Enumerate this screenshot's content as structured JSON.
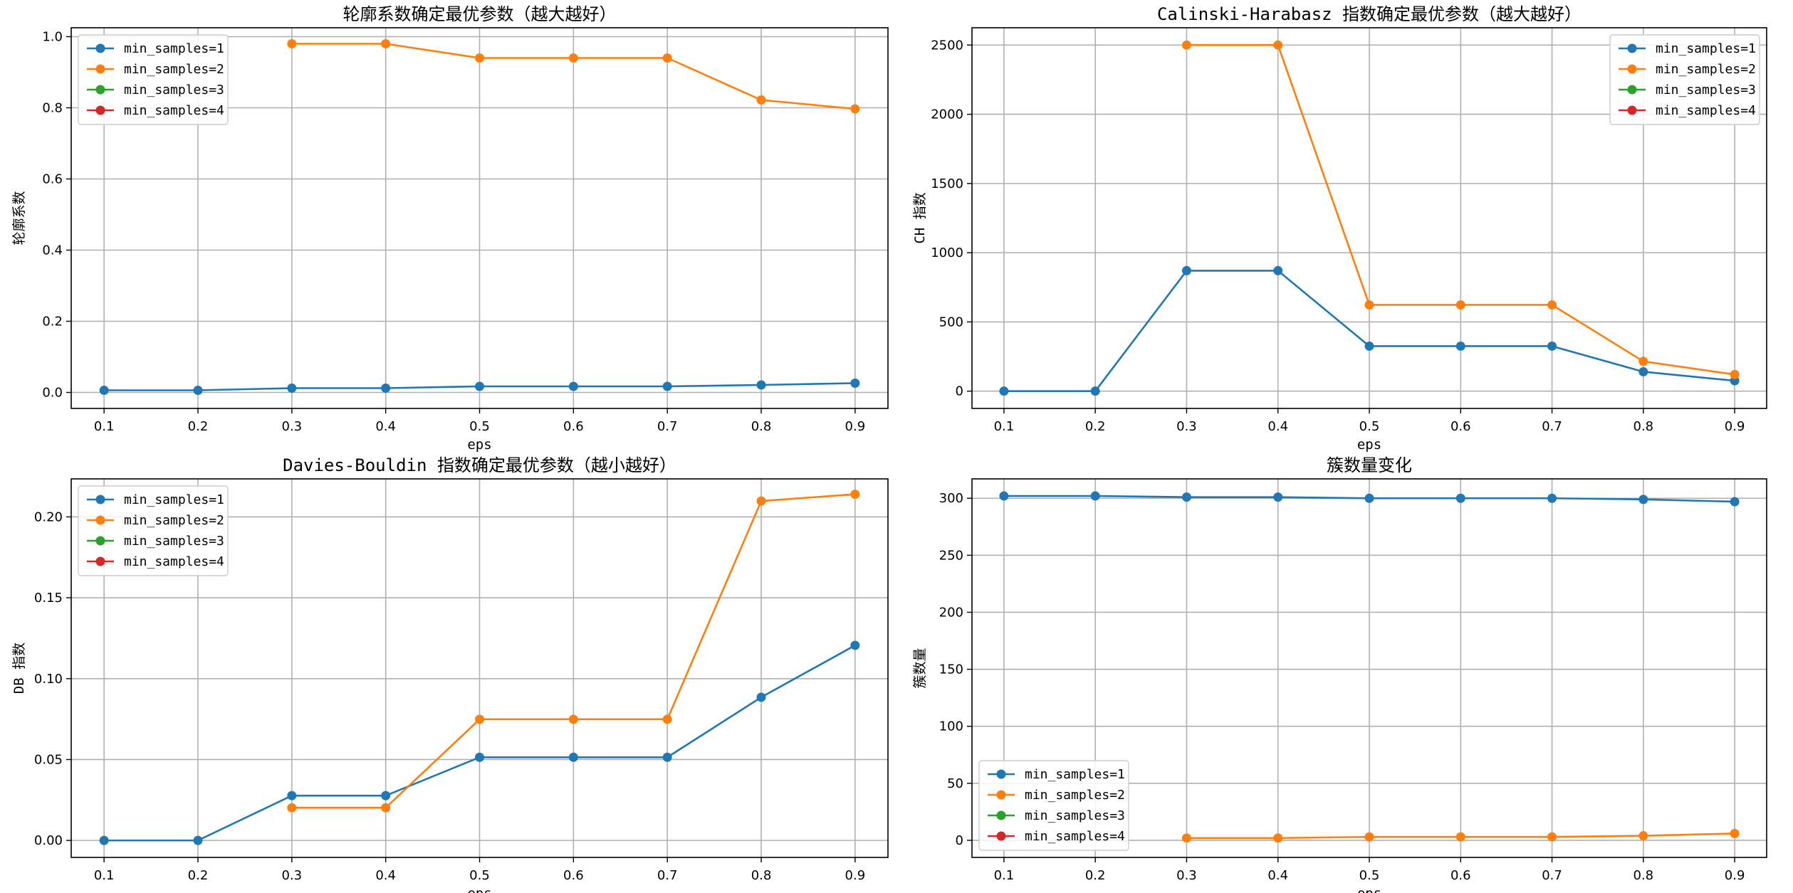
{
  "chart_data": [
    {
      "type": "line",
      "title": "轮廓系数确定最优参数（越大越好）",
      "xlabel": "eps",
      "ylabel": "轮廓系数",
      "x": [
        0.1,
        0.2,
        0.3,
        0.4,
        0.5,
        0.6,
        0.7,
        0.8,
        0.9
      ],
      "xlim": [
        0.065,
        0.935
      ],
      "ylim": [
        -0.045,
        1.025
      ],
      "yticks": [
        0.0,
        0.2,
        0.4,
        0.6,
        0.8,
        1.0
      ],
      "ytick_labels": [
        "0.0",
        "0.2",
        "0.4",
        "0.6",
        "0.8",
        "1.0"
      ],
      "grid": true,
      "legend_position": "upper-left",
      "series": [
        {
          "name": "min_samples=1",
          "color": "#1f77b4",
          "values": [
            0.006,
            0.006,
            0.012,
            0.012,
            0.017,
            0.017,
            0.017,
            0.021,
            0.026
          ]
        },
        {
          "name": "min_samples=2",
          "color": "#ff7f0e",
          "values": [
            null,
            null,
            0.98,
            0.98,
            0.94,
            0.94,
            0.94,
            0.822,
            0.797
          ]
        },
        {
          "name": "min_samples=3",
          "color": "#2ca02c",
          "values": [
            null,
            null,
            null,
            null,
            null,
            null,
            null,
            null,
            null
          ]
        },
        {
          "name": "min_samples=4",
          "color": "#d62728",
          "values": [
            null,
            null,
            null,
            null,
            null,
            null,
            null,
            null,
            null
          ]
        }
      ]
    },
    {
      "type": "line",
      "title": "Calinski-Harabasz 指数确定最优参数（越大越好）",
      "xlabel": "eps",
      "ylabel": "CH 指数",
      "x": [
        0.1,
        0.2,
        0.3,
        0.4,
        0.5,
        0.6,
        0.7,
        0.8,
        0.9
      ],
      "xlim": [
        0.065,
        0.935
      ],
      "ylim": [
        -125,
        2625
      ],
      "yticks": [
        0,
        500,
        1000,
        1500,
        2000,
        2500
      ],
      "ytick_labels": [
        "0",
        "500",
        "1000",
        "1500",
        "2000",
        "2500"
      ],
      "grid": true,
      "legend_position": "upper-right",
      "series": [
        {
          "name": "min_samples=1",
          "color": "#1f77b4",
          "values": [
            0,
            0,
            870,
            870,
            325,
            325,
            325,
            140,
            75
          ]
        },
        {
          "name": "min_samples=2",
          "color": "#ff7f0e",
          "values": [
            null,
            null,
            2500,
            2500,
            623,
            623,
            623,
            215,
            120
          ]
        },
        {
          "name": "min_samples=3",
          "color": "#2ca02c",
          "values": [
            null,
            null,
            null,
            null,
            null,
            null,
            null,
            null,
            null
          ]
        },
        {
          "name": "min_samples=4",
          "color": "#d62728",
          "values": [
            null,
            null,
            null,
            null,
            null,
            null,
            null,
            null,
            null
          ]
        }
      ]
    },
    {
      "type": "line",
      "title": "Davies-Bouldin 指数确定最优参数（越小越好）",
      "xlabel": "eps",
      "ylabel": "DB 指数",
      "x": [
        0.1,
        0.2,
        0.3,
        0.4,
        0.5,
        0.6,
        0.7,
        0.8,
        0.9
      ],
      "xlim": [
        0.065,
        0.935
      ],
      "ylim": [
        -0.0105,
        0.2235
      ],
      "yticks": [
        0.0,
        0.05,
        0.1,
        0.15,
        0.2
      ],
      "ytick_labels": [
        "0.00",
        "0.05",
        "0.10",
        "0.15",
        "0.20"
      ],
      "grid": true,
      "legend_position": "upper-left",
      "series": [
        {
          "name": "min_samples=1",
          "color": "#1f77b4",
          "values": [
            0.0,
            0.0,
            0.0277,
            0.0277,
            0.0514,
            0.0514,
            0.0514,
            0.0885,
            0.1206
          ]
        },
        {
          "name": "min_samples=2",
          "color": "#ff7f0e",
          "values": [
            null,
            null,
            0.0202,
            0.0202,
            0.0749,
            0.0749,
            0.0749,
            0.2098,
            0.214
          ]
        },
        {
          "name": "min_samples=3",
          "color": "#2ca02c",
          "values": [
            null,
            null,
            null,
            null,
            null,
            null,
            null,
            null,
            null
          ]
        },
        {
          "name": "min_samples=4",
          "color": "#d62728",
          "values": [
            null,
            null,
            null,
            null,
            null,
            null,
            null,
            null,
            null
          ]
        }
      ]
    },
    {
      "type": "line",
      "title": "簇数量变化",
      "xlabel": "eps",
      "ylabel": "簇数量",
      "x": [
        0.1,
        0.2,
        0.3,
        0.4,
        0.5,
        0.6,
        0.7,
        0.8,
        0.9
      ],
      "xlim": [
        0.065,
        0.935
      ],
      "ylim": [
        -15,
        317
      ],
      "yticks": [
        0,
        50,
        100,
        150,
        200,
        250,
        300
      ],
      "ytick_labels": [
        "0",
        "50",
        "100",
        "150",
        "200",
        "250",
        "300"
      ],
      "grid": true,
      "legend_position": "lower-left",
      "series": [
        {
          "name": "min_samples=1",
          "color": "#1f77b4",
          "values": [
            302,
            302,
            301,
            301,
            300,
            300,
            300,
            299,
            297
          ]
        },
        {
          "name": "min_samples=2",
          "color": "#ff7f0e",
          "values": [
            null,
            null,
            2,
            2,
            3,
            3,
            3,
            4,
            6
          ]
        },
        {
          "name": "min_samples=3",
          "color": "#2ca02c",
          "values": [
            null,
            null,
            null,
            null,
            null,
            null,
            null,
            null,
            null
          ]
        },
        {
          "name": "min_samples=4",
          "color": "#d62728",
          "values": [
            null,
            null,
            null,
            null,
            null,
            null,
            null,
            null,
            null
          ]
        }
      ]
    }
  ]
}
